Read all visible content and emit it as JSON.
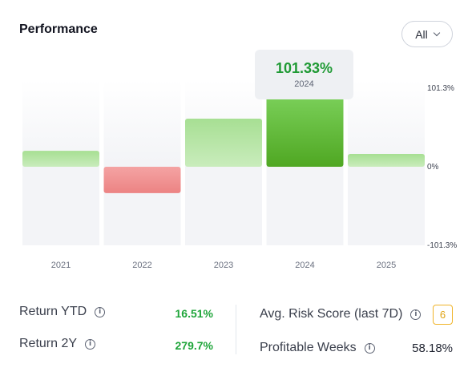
{
  "header": {
    "title": "Performance",
    "range_label": "All"
  },
  "tooltip": {
    "value": "101.33%",
    "year": "2024"
  },
  "chart_data": {
    "type": "bar",
    "categories": [
      "2021",
      "2022",
      "2023",
      "2024",
      "2025"
    ],
    "values": [
      20.5,
      -34.0,
      62.0,
      101.33,
      16.51
    ],
    "ylim": [
      -101.3,
      101.3
    ],
    "y_ticks": [
      "101.3%",
      "0%",
      "-101.3%"
    ],
    "highlighted": "2024",
    "colors": {
      "positive": "#9bd88a",
      "positive_highlight": "#55b228",
      "negative": "#ef8b8b"
    }
  },
  "stats": {
    "return_ytd": {
      "label": "Return YTD",
      "value": "16.51%"
    },
    "return_2y": {
      "label": "Return 2Y",
      "value": "279.7%"
    },
    "avg_risk": {
      "label": "Avg. Risk Score (last 7D)",
      "value": "6"
    },
    "profitable_weeks": {
      "label": "Profitable Weeks",
      "value": "58.18%"
    }
  }
}
